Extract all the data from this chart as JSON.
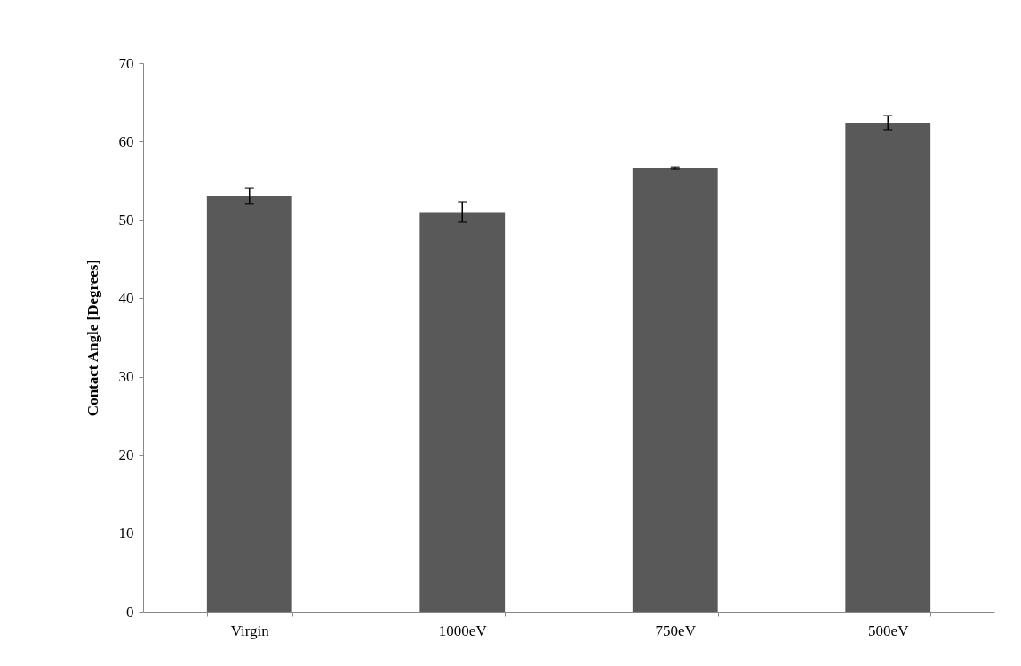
{
  "chart_data": {
    "type": "bar",
    "ylabel": "Contact Angle [Degrees]",
    "categories": [
      "Virgin",
      "1000eV",
      "750eV",
      "500eV"
    ],
    "values": [
      53.1,
      51.0,
      56.6,
      62.4
    ],
    "errors": [
      1.0,
      1.3,
      0.1,
      0.9
    ],
    "color": "#595959",
    "ylim": [
      0,
      70
    ],
    "yticks": [
      0,
      10,
      20,
      30,
      40,
      50,
      60,
      70
    ],
    "grid": false
  }
}
